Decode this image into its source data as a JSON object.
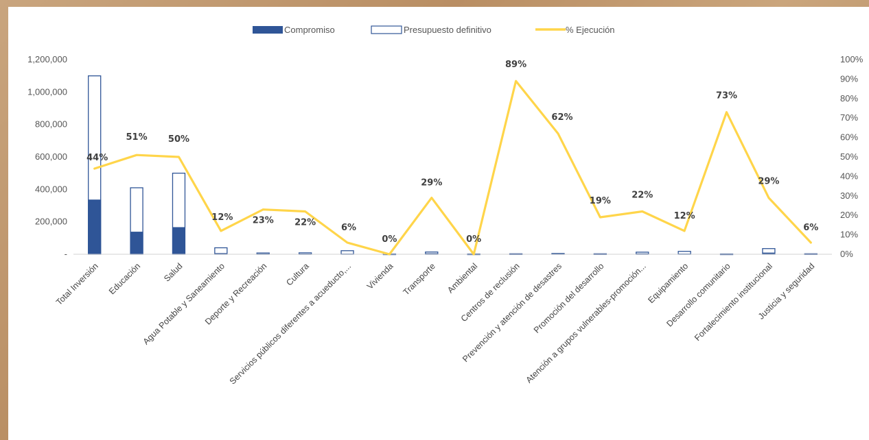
{
  "chart_data": {
    "type": "bar",
    "title": "",
    "xlabel": "",
    "ylabel": "",
    "categories": [
      "Total Inversión",
      "Educación",
      "Salud",
      "Agua Potable y Saneamiento",
      "Deporte y Recreación",
      "Cultura",
      "Servicios públicos diferentes a acueducto,...",
      "Vivienda",
      "Transporte",
      "Ambiental",
      "Centros de reclusión",
      "Prevención y atención de desastres",
      "Promoción del desarrollo",
      "Atención a grupos vulnerables-promoción...",
      "Equipamiento",
      "Desarrollo comunitario",
      "Fortalecimiento institucional",
      "Justicia y seguridad"
    ],
    "series": [
      {
        "name": "Compromiso",
        "kind": "bar",
        "axis": "left",
        "color": "#2f5597",
        "values": [
          335000,
          137000,
          165000,
          5000,
          2000,
          2000,
          1500,
          0,
          4000,
          0,
          1000,
          2000,
          500,
          3000,
          2000,
          500,
          8000,
          500
        ]
      },
      {
        "name": "Presupuesto definitivo",
        "kind": "bar-outline",
        "axis": "left",
        "color": "#2f5597",
        "values": [
          1100000,
          410000,
          500000,
          40000,
          8000,
          9000,
          22000,
          2000,
          14000,
          2000,
          3000,
          5000,
          3000,
          13000,
          18000,
          2000,
          35000,
          3000
        ]
      },
      {
        "name": "% Ejecución",
        "kind": "line",
        "axis": "right",
        "color": "#ffd54a",
        "values": [
          44,
          51,
          50,
          12,
          23,
          22,
          6,
          0,
          29,
          0,
          89,
          62,
          19,
          22,
          12,
          73,
          29,
          6
        ],
        "labels": [
          "44%",
          "51%",
          "50%",
          "12%",
          "23%",
          "22%",
          "6%",
          "0%",
          "29%",
          "0%",
          "89%",
          "62%",
          "19%",
          "22%",
          "12%",
          "73%",
          "29%",
          "6%"
        ]
      }
    ],
    "y_left": {
      "min": 0,
      "max": 1200000,
      "ticks": [
        0,
        200000,
        400000,
        600000,
        800000,
        1000000,
        1200000
      ],
      "tick_labels": [
        "-",
        "200,000",
        "400,000",
        "600,000",
        "800,000",
        "1,000,000",
        "1,200,000"
      ]
    },
    "y_right": {
      "min": 0,
      "max": 100,
      "ticks": [
        0,
        10,
        20,
        30,
        40,
        50,
        60,
        70,
        80,
        90,
        100
      ],
      "tick_labels": [
        "0%",
        "10%",
        "20%",
        "30%",
        "40%",
        "50%",
        "60%",
        "70%",
        "80%",
        "90%",
        "100%"
      ]
    },
    "legend": {
      "position": "top-center",
      "items": [
        "Compromiso",
        "Presupuesto definitivo",
        "% Ejecución"
      ]
    },
    "grid": false
  }
}
